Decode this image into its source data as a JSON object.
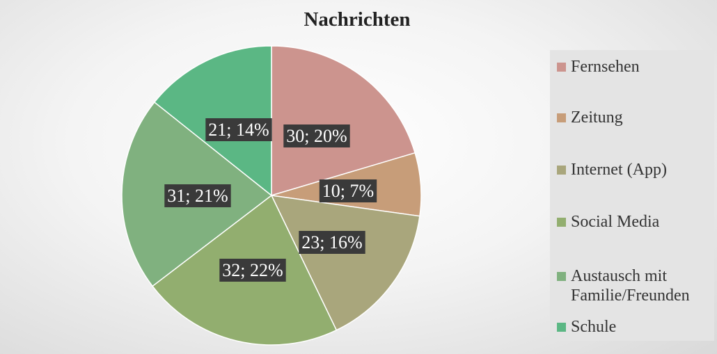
{
  "chart_data": {
    "type": "pie",
    "title": "Nachrichten",
    "categories": [
      "Fernsehen",
      "Zeitung",
      "Internet (App)",
      "Social Media",
      "Austausch mit Familie/Freunden",
      "Schule"
    ],
    "values": [
      30,
      10,
      23,
      32,
      31,
      21
    ],
    "percent_labels": [
      "20%",
      "7%",
      "16%",
      "22%",
      "21%",
      "14%"
    ],
    "data_labels": [
      "30; 20%",
      "10; 7%",
      "23; 16%",
      "32; 22%",
      "31; 21%",
      "21; 14%"
    ],
    "colors": [
      "#cc948e",
      "#c79d79",
      "#a9a67c",
      "#92ae6f",
      "#80b17f",
      "#5bb784"
    ],
    "legend_position": "right",
    "start_angle": "12 o'clock",
    "direction": "clockwise"
  },
  "legend": {
    "items": [
      {
        "label": "Fernsehen",
        "color": "#cc948e"
      },
      {
        "label": "Zeitung",
        "color": "#c79d79"
      },
      {
        "label": "Internet (App)",
        "color": "#a9a67c"
      },
      {
        "label": "Social Media",
        "color": "#92ae6f"
      },
      {
        "label": "Austausch mit Familie/Freunden",
        "color": "#80b17f"
      },
      {
        "label": "Schule",
        "color": "#5bb784"
      }
    ]
  }
}
